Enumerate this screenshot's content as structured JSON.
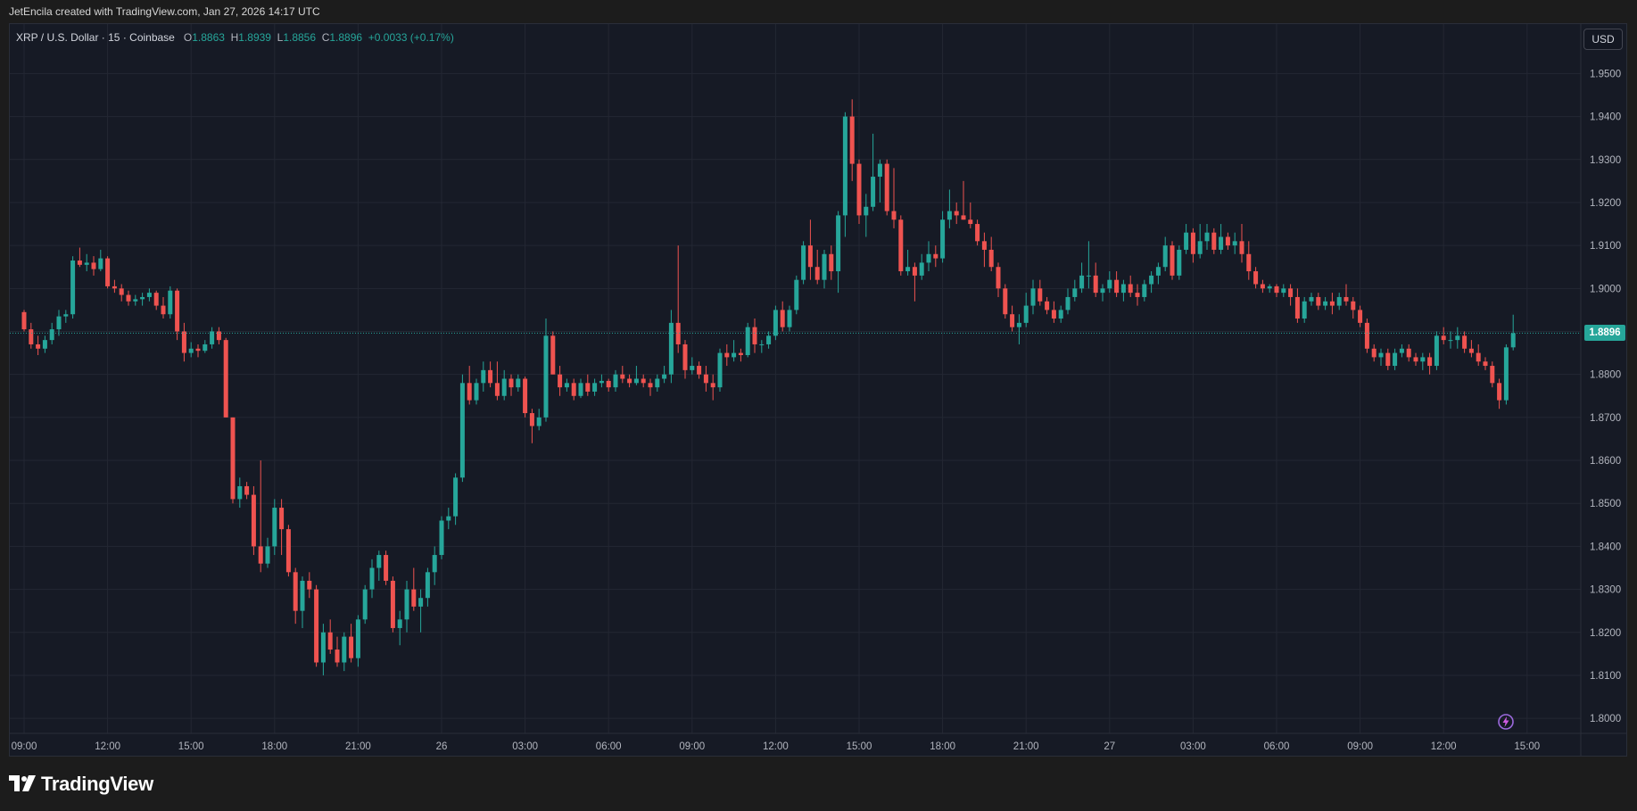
{
  "header": {
    "credit": "JetEncila created with TradingView.com, Jan 27, 2026 14:17 UTC"
  },
  "legend": {
    "symbol": "XRP / U.S. Dollar · 15 · Coinbase",
    "open_label": "O",
    "open": "1.8863",
    "high_label": "H",
    "high": "1.8939",
    "low_label": "L",
    "low": "1.8856",
    "close_label": "C",
    "close": "1.8896",
    "change": "+0.0033 (+0.17%)"
  },
  "currency_button": "USD",
  "last_price_label": "1.8896",
  "footer": {
    "brand": "TradingView"
  },
  "colors": {
    "up": "#26a69a",
    "down": "#ef5350",
    "background": "#161a25",
    "grid": "#232733",
    "axis_text": "#b2b5be"
  },
  "chart_data": {
    "type": "candlestick",
    "interval_minutes": 15,
    "y_ticks": [
      "1.9500",
      "1.9400",
      "1.9300",
      "1.9200",
      "1.9100",
      "1.9000",
      "1.8900",
      "1.8800",
      "1.8700",
      "1.8600",
      "1.8500",
      "1.8400",
      "1.8300",
      "1.8200",
      "1.8100",
      "1.8000"
    ],
    "ylim": [
      1.7965,
      1.9615
    ],
    "x_ticks": [
      {
        "label": "09:00",
        "index": 0
      },
      {
        "label": "12:00",
        "index": 12
      },
      {
        "label": "15:00",
        "index": 24
      },
      {
        "label": "18:00",
        "index": 36
      },
      {
        "label": "21:00",
        "index": 48
      },
      {
        "label": "26",
        "index": 60
      },
      {
        "label": "03:00",
        "index": 72
      },
      {
        "label": "06:00",
        "index": 84
      },
      {
        "label": "09:00",
        "index": 96
      },
      {
        "label": "12:00",
        "index": 108
      },
      {
        "label": "15:00",
        "index": 120
      },
      {
        "label": "18:00",
        "index": 132
      },
      {
        "label": "21:00",
        "index": 144
      },
      {
        "label": "27",
        "index": 156
      },
      {
        "label": "03:00",
        "index": 168
      },
      {
        "label": "06:00",
        "index": 180
      },
      {
        "label": "09:00",
        "index": 192
      },
      {
        "label": "12:00",
        "index": 204
      },
      {
        "label": "15:00",
        "index": 216
      }
    ],
    "last_price": 1.8896,
    "candles": [
      [
        1.8945,
        1.895,
        1.89,
        1.8905
      ],
      [
        1.8905,
        1.892,
        1.886,
        1.887
      ],
      [
        1.887,
        1.889,
        1.8845,
        1.886
      ],
      [
        1.886,
        1.889,
        1.885,
        1.888
      ],
      [
        1.888,
        1.892,
        1.887,
        1.8905
      ],
      [
        1.8905,
        1.895,
        1.889,
        1.8935
      ],
      [
        1.8935,
        1.895,
        1.892,
        1.894
      ],
      [
        1.894,
        1.9075,
        1.893,
        1.9065
      ],
      [
        1.9065,
        1.9095,
        1.905,
        1.9055
      ],
      [
        1.9055,
        1.908,
        1.904,
        1.906
      ],
      [
        1.906,
        1.9075,
        1.903,
        1.9045
      ],
      [
        1.9045,
        1.909,
        1.904,
        1.907
      ],
      [
        1.907,
        1.9075,
        1.9,
        1.9005
      ],
      [
        1.9005,
        1.902,
        1.899,
        1.9
      ],
      [
        1.9,
        1.901,
        1.897,
        1.8985
      ],
      [
        1.8985,
        1.8995,
        1.896,
        1.897
      ],
      [
        1.897,
        1.8985,
        1.896,
        1.8975
      ],
      [
        1.8975,
        1.899,
        1.896,
        1.898
      ],
      [
        1.898,
        1.9,
        1.897,
        1.899
      ],
      [
        1.899,
        1.8995,
        1.895,
        1.896
      ],
      [
        1.896,
        1.898,
        1.893,
        1.894
      ],
      [
        1.894,
        1.9005,
        1.893,
        1.8995
      ],
      [
        1.8995,
        1.9,
        1.888,
        1.89
      ],
      [
        1.89,
        1.892,
        1.883,
        1.885
      ],
      [
        1.885,
        1.8875,
        1.884,
        1.886
      ],
      [
        1.886,
        1.887,
        1.884,
        1.8855
      ],
      [
        1.8855,
        1.888,
        1.885,
        1.887
      ],
      [
        1.887,
        1.891,
        1.886,
        1.89
      ],
      [
        1.89,
        1.891,
        1.887,
        1.888
      ],
      [
        1.888,
        1.8885,
        1.87,
        1.87
      ],
      [
        1.87,
        1.87,
        1.85,
        1.851
      ],
      [
        1.851,
        1.856,
        1.849,
        1.854
      ],
      [
        1.854,
        1.855,
        1.851,
        1.852
      ],
      [
        1.852,
        1.854,
        1.838,
        1.84
      ],
      [
        1.84,
        1.86,
        1.834,
        1.836
      ],
      [
        1.836,
        1.842,
        1.835,
        1.84
      ],
      [
        1.84,
        1.851,
        1.838,
        1.849
      ],
      [
        1.849,
        1.851,
        1.838,
        1.844
      ],
      [
        1.844,
        1.845,
        1.833,
        1.834
      ],
      [
        1.834,
        1.835,
        1.822,
        1.825
      ],
      [
        1.825,
        1.833,
        1.821,
        1.832
      ],
      [
        1.832,
        1.834,
        1.828,
        1.83
      ],
      [
        1.83,
        1.831,
        1.812,
        1.813
      ],
      [
        1.813,
        1.822,
        1.81,
        1.82
      ],
      [
        1.82,
        1.823,
        1.815,
        1.816
      ],
      [
        1.816,
        1.819,
        1.812,
        1.813
      ],
      [
        1.813,
        1.82,
        1.811,
        1.819
      ],
      [
        1.819,
        1.822,
        1.813,
        1.814
      ],
      [
        1.814,
        1.824,
        1.812,
        1.823
      ],
      [
        1.823,
        1.831,
        1.822,
        1.83
      ],
      [
        1.83,
        1.837,
        1.828,
        1.835
      ],
      [
        1.835,
        1.839,
        1.832,
        1.838
      ],
      [
        1.838,
        1.839,
        1.831,
        1.832
      ],
      [
        1.832,
        1.833,
        1.82,
        1.821
      ],
      [
        1.821,
        1.825,
        1.817,
        1.823
      ],
      [
        1.823,
        1.832,
        1.82,
        1.83
      ],
      [
        1.83,
        1.835,
        1.825,
        1.826
      ],
      [
        1.826,
        1.83,
        1.82,
        1.828
      ],
      [
        1.828,
        1.835,
        1.826,
        1.834
      ],
      [
        1.834,
        1.84,
        1.831,
        1.838
      ],
      [
        1.838,
        1.847,
        1.837,
        1.846
      ],
      [
        1.846,
        1.849,
        1.844,
        1.847
      ],
      [
        1.847,
        1.857,
        1.845,
        1.856
      ],
      [
        1.856,
        1.88,
        1.855,
        1.878
      ],
      [
        1.878,
        1.882,
        1.873,
        1.874
      ],
      [
        1.874,
        1.879,
        1.873,
        1.878
      ],
      [
        1.878,
        1.883,
        1.876,
        1.881
      ],
      [
        1.881,
        1.883,
        1.877,
        1.878
      ],
      [
        1.878,
        1.883,
        1.874,
        1.875
      ],
      [
        1.875,
        1.881,
        1.874,
        1.879
      ],
      [
        1.879,
        1.88,
        1.875,
        1.877
      ],
      [
        1.877,
        1.88,
        1.876,
        1.879
      ],
      [
        1.879,
        1.8795,
        1.87,
        1.871
      ],
      [
        1.871,
        1.872,
        1.864,
        1.868
      ],
      [
        1.868,
        1.872,
        1.867,
        1.87
      ],
      [
        1.87,
        1.893,
        1.869,
        1.889
      ],
      [
        1.889,
        1.89,
        1.88,
        1.88
      ],
      [
        1.88,
        1.882,
        1.875,
        1.877
      ],
      [
        1.877,
        1.879,
        1.876,
        1.878
      ],
      [
        1.878,
        1.879,
        1.874,
        1.875
      ],
      [
        1.875,
        1.879,
        1.8745,
        1.878
      ],
      [
        1.878,
        1.88,
        1.875,
        1.876
      ],
      [
        1.876,
        1.879,
        1.875,
        1.878
      ],
      [
        1.878,
        1.88,
        1.877,
        1.8785
      ],
      [
        1.8785,
        1.879,
        1.876,
        1.877
      ],
      [
        1.877,
        1.881,
        1.876,
        1.88
      ],
      [
        1.88,
        1.882,
        1.878,
        1.879
      ],
      [
        1.879,
        1.88,
        1.877,
        1.878
      ],
      [
        1.878,
        1.882,
        1.8775,
        1.879
      ],
      [
        1.879,
        1.88,
        1.877,
        1.878
      ],
      [
        1.878,
        1.879,
        1.875,
        1.877
      ],
      [
        1.877,
        1.88,
        1.876,
        1.879
      ],
      [
        1.879,
        1.882,
        1.878,
        1.88
      ],
      [
        1.88,
        1.895,
        1.878,
        1.892
      ],
      [
        1.892,
        1.91,
        1.885,
        1.887
      ],
      [
        1.887,
        1.888,
        1.879,
        1.881
      ],
      [
        1.881,
        1.884,
        1.88,
        1.882
      ],
      [
        1.882,
        1.883,
        1.879,
        1.88
      ],
      [
        1.88,
        1.882,
        1.876,
        1.878
      ],
      [
        1.878,
        1.88,
        1.874,
        1.877
      ],
      [
        1.877,
        1.886,
        1.876,
        1.885
      ],
      [
        1.885,
        1.887,
        1.882,
        1.884
      ],
      [
        1.884,
        1.888,
        1.883,
        1.885
      ],
      [
        1.885,
        1.886,
        1.883,
        1.8845
      ],
      [
        1.8845,
        1.892,
        1.884,
        1.891
      ],
      [
        1.891,
        1.893,
        1.885,
        1.887
      ],
      [
        1.887,
        1.888,
        1.885,
        1.887
      ],
      [
        1.887,
        1.89,
        1.886,
        1.889
      ],
      [
        1.889,
        1.896,
        1.888,
        1.895
      ],
      [
        1.895,
        1.897,
        1.89,
        1.891
      ],
      [
        1.891,
        1.896,
        1.89,
        1.895
      ],
      [
        1.895,
        1.903,
        1.894,
        1.902
      ],
      [
        1.902,
        1.911,
        1.901,
        1.91
      ],
      [
        1.91,
        1.916,
        1.902,
        1.905
      ],
      [
        1.905,
        1.909,
        1.901,
        1.902
      ],
      [
        1.902,
        1.909,
        1.9,
        1.908
      ],
      [
        1.908,
        1.91,
        1.902,
        1.904
      ],
      [
        1.904,
        1.918,
        1.899,
        1.917
      ],
      [
        1.917,
        1.941,
        1.912,
        1.94
      ],
      [
        1.94,
        1.944,
        1.925,
        1.929
      ],
      [
        1.929,
        1.93,
        1.915,
        1.917
      ],
      [
        1.917,
        1.922,
        1.912,
        1.919
      ],
      [
        1.919,
        1.936,
        1.918,
        1.926
      ],
      [
        1.926,
        1.93,
        1.92,
        1.929
      ],
      [
        1.929,
        1.93,
        1.917,
        1.918
      ],
      [
        1.918,
        1.928,
        1.914,
        1.916
      ],
      [
        1.916,
        1.917,
        1.903,
        1.904
      ],
      [
        1.904,
        1.909,
        1.903,
        1.905
      ],
      [
        1.905,
        1.906,
        1.897,
        1.903
      ],
      [
        1.903,
        1.908,
        1.902,
        1.906
      ],
      [
        1.906,
        1.911,
        1.904,
        1.908
      ],
      [
        1.908,
        1.91,
        1.905,
        1.907
      ],
      [
        1.907,
        1.918,
        1.906,
        1.916
      ],
      [
        1.916,
        1.923,
        1.914,
        1.918
      ],
      [
        1.918,
        1.92,
        1.915,
        1.917
      ],
      [
        1.917,
        1.925,
        1.916,
        1.916
      ],
      [
        1.916,
        1.92,
        1.914,
        1.915
      ],
      [
        1.915,
        1.916,
        1.91,
        1.911
      ],
      [
        1.911,
        1.913,
        1.905,
        1.909
      ],
      [
        1.909,
        1.912,
        1.904,
        1.905
      ],
      [
        1.905,
        1.906,
        1.898,
        1.9
      ],
      [
        1.9,
        1.901,
        1.893,
        1.894
      ],
      [
        1.894,
        1.896,
        1.89,
        1.891
      ],
      [
        1.891,
        1.894,
        1.887,
        1.892
      ],
      [
        1.892,
        1.899,
        1.891,
        1.896
      ],
      [
        1.896,
        1.902,
        1.894,
        1.9
      ],
      [
        1.9,
        1.902,
        1.896,
        1.897
      ],
      [
        1.897,
        1.898,
        1.894,
        1.895
      ],
      [
        1.895,
        1.897,
        1.892,
        1.893
      ],
      [
        1.893,
        1.896,
        1.892,
        1.895
      ],
      [
        1.895,
        1.9,
        1.894,
        1.898
      ],
      [
        1.898,
        1.902,
        1.897,
        1.9
      ],
      [
        1.9,
        1.906,
        1.899,
        1.903
      ],
      [
        1.903,
        1.911,
        1.9,
        1.903
      ],
      [
        1.903,
        1.906,
        1.898,
        1.899
      ],
      [
        1.899,
        1.901,
        1.897,
        1.9
      ],
      [
        1.9,
        1.904,
        1.899,
        1.902
      ],
      [
        1.902,
        1.904,
        1.898,
        1.899
      ],
      [
        1.899,
        1.902,
        1.897,
        1.901
      ],
      [
        1.901,
        1.903,
        1.898,
        1.899
      ],
      [
        1.899,
        1.901,
        1.896,
        1.898
      ],
      [
        1.898,
        1.902,
        1.897,
        1.901
      ],
      [
        1.901,
        1.904,
        1.899,
        1.903
      ],
      [
        1.903,
        1.906,
        1.901,
        1.905
      ],
      [
        1.905,
        1.912,
        1.904,
        1.91
      ],
      [
        1.91,
        1.911,
        1.902,
        1.903
      ],
      [
        1.903,
        1.91,
        1.902,
        1.909
      ],
      [
        1.909,
        1.915,
        1.908,
        1.913
      ],
      [
        1.913,
        1.914,
        1.906,
        1.908
      ],
      [
        1.908,
        1.915,
        1.907,
        1.911
      ],
      [
        1.911,
        1.915,
        1.909,
        1.913
      ],
      [
        1.913,
        1.914,
        1.908,
        1.909
      ],
      [
        1.909,
        1.915,
        1.908,
        1.912
      ],
      [
        1.912,
        1.913,
        1.909,
        1.91
      ],
      [
        1.91,
        1.913,
        1.908,
        1.911
      ],
      [
        1.911,
        1.915,
        1.906,
        1.908
      ],
      [
        1.908,
        1.911,
        1.902,
        1.904
      ],
      [
        1.904,
        1.905,
        1.9,
        1.901
      ],
      [
        1.901,
        1.902,
        1.899,
        1.9
      ],
      [
        1.9,
        1.901,
        1.899,
        1.9005
      ],
      [
        1.9005,
        1.901,
        1.898,
        1.899
      ],
      [
        1.899,
        1.901,
        1.898,
        1.9
      ],
      [
        1.9,
        1.901,
        1.896,
        1.898
      ],
      [
        1.898,
        1.9,
        1.892,
        1.893
      ],
      [
        1.893,
        1.898,
        1.892,
        1.897
      ],
      [
        1.897,
        1.899,
        1.896,
        1.898
      ],
      [
        1.898,
        1.899,
        1.895,
        1.896
      ],
      [
        1.896,
        1.898,
        1.895,
        1.897
      ],
      [
        1.897,
        1.899,
        1.894,
        1.896
      ],
      [
        1.896,
        1.899,
        1.895,
        1.898
      ],
      [
        1.898,
        1.901,
        1.896,
        1.897
      ],
      [
        1.897,
        1.898,
        1.893,
        1.895
      ],
      [
        1.895,
        1.896,
        1.891,
        1.892
      ],
      [
        1.892,
        1.893,
        1.885,
        1.886
      ],
      [
        1.886,
        1.887,
        1.883,
        1.884
      ],
      [
        1.884,
        1.886,
        1.882,
        1.885
      ],
      [
        1.885,
        1.886,
        1.881,
        1.882
      ],
      [
        1.882,
        1.886,
        1.881,
        1.885
      ],
      [
        1.885,
        1.887,
        1.884,
        1.886
      ],
      [
        1.886,
        1.887,
        1.883,
        1.884
      ],
      [
        1.884,
        1.885,
        1.882,
        1.883
      ],
      [
        1.883,
        1.885,
        1.881,
        1.884
      ],
      [
        1.884,
        1.885,
        1.88,
        1.882
      ],
      [
        1.882,
        1.89,
        1.881,
        1.889
      ],
      [
        1.889,
        1.891,
        1.887,
        1.888
      ],
      [
        1.888,
        1.89,
        1.886,
        1.888
      ],
      [
        1.888,
        1.891,
        1.886,
        1.889
      ],
      [
        1.889,
        1.89,
        1.885,
        1.886
      ],
      [
        1.886,
        1.888,
        1.884,
        1.885
      ],
      [
        1.885,
        1.887,
        1.882,
        1.883
      ],
      [
        1.883,
        1.884,
        1.881,
        1.882
      ],
      [
        1.882,
        1.883,
        1.877,
        1.878
      ],
      [
        1.878,
        1.879,
        1.872,
        1.874
      ],
      [
        1.874,
        1.887,
        1.873,
        1.8863
      ],
      [
        1.8863,
        1.8939,
        1.8856,
        1.8896
      ]
    ]
  }
}
